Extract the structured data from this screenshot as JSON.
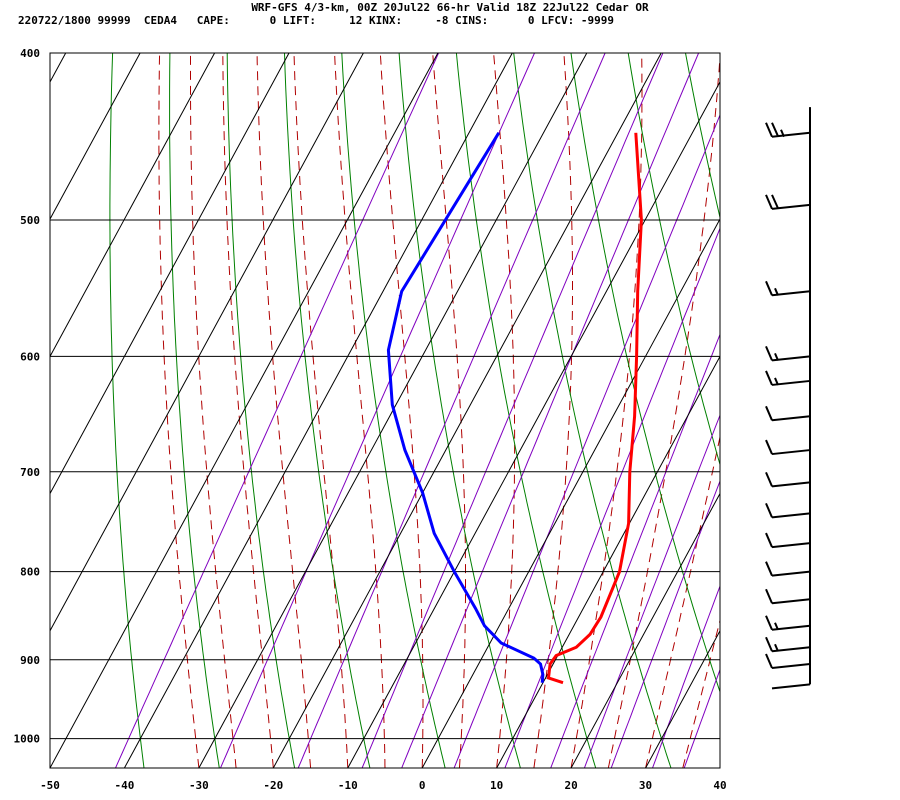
{
  "header": {
    "line1": "WRF-GFS 4/3-km, 00Z 20Jul22 66-hr Valid 18Z 22Jul22 Cedar OR",
    "line2": "220722/1800 99999  CEDA4   CAPE:      0 LIFT:     12 KINX:     -8 CINS:      0 LFCV: -9999"
  },
  "colors": {
    "temperature": "#ff0000",
    "dewpoint": "#0000ff",
    "isotherm_grid": "#000000",
    "dry_adiabat": "#008000",
    "moist_adiabat": "#b00000",
    "mixing_ratio": "#8000c0",
    "wind_barb": "#000000"
  },
  "chart_data": {
    "type": "line",
    "subtype": "skew-T log-p sounding",
    "xlabel": "",
    "ylabel": "",
    "x_ticks": [
      "-50",
      "-40",
      "-30",
      "-20",
      "-10",
      "0",
      "10",
      "20",
      "30",
      "40"
    ],
    "y_ticks": [
      "400",
      "500",
      "600",
      "700",
      "800",
      "900",
      "1000"
    ],
    "xlim": [
      -50,
      40
    ],
    "ylim": [
      1040,
      400
    ],
    "y_scale": "log",
    "grid": true,
    "series": [
      {
        "key": "temperature",
        "points": [
          [
            -17.6,
            445
          ],
          [
            -10.5,
            500
          ],
          [
            -5.8,
            550
          ],
          [
            -1.2,
            600
          ],
          [
            2.9,
            650
          ],
          [
            6.3,
            700
          ],
          [
            9.9,
            750
          ],
          [
            12.2,
            800
          ],
          [
            13.0,
            850
          ],
          [
            12.8,
            870
          ],
          [
            11.9,
            885
          ],
          [
            9.8,
            895
          ],
          [
            9.6,
            905
          ],
          [
            10.4,
            922
          ],
          [
            12.7,
            928
          ]
        ]
      },
      {
        "key": "dewpoint",
        "points": [
          [
            -36.0,
            445
          ],
          [
            -37.5,
            550
          ],
          [
            -35.0,
            595
          ],
          [
            -30.5,
            640
          ],
          [
            -25.5,
            680
          ],
          [
            -20.0,
            720
          ],
          [
            -15.5,
            760
          ],
          [
            -10.0,
            800
          ],
          [
            -4.5,
            840
          ],
          [
            -2.0,
            860
          ],
          [
            1.5,
            880
          ],
          [
            7.0,
            898
          ],
          [
            8.3,
            905
          ],
          [
            9.4,
            918
          ],
          [
            9.9,
            928
          ]
        ]
      }
    ],
    "wind_barbs": [
      {
        "p": 445,
        "speed_kt": 25
      },
      {
        "p": 490,
        "speed_kt": 20
      },
      {
        "p": 550,
        "speed_kt": 15
      },
      {
        "p": 600,
        "speed_kt": 15
      },
      {
        "p": 620,
        "speed_kt": 15
      },
      {
        "p": 650,
        "speed_kt": 10
      },
      {
        "p": 680,
        "speed_kt": 10
      },
      {
        "p": 710,
        "speed_kt": 10
      },
      {
        "p": 740,
        "speed_kt": 10
      },
      {
        "p": 770,
        "speed_kt": 10
      },
      {
        "p": 800,
        "speed_kt": 10
      },
      {
        "p": 830,
        "speed_kt": 10
      },
      {
        "p": 860,
        "speed_kt": 15
      },
      {
        "p": 885,
        "speed_kt": 15
      },
      {
        "p": 905,
        "speed_kt": 10
      },
      {
        "p": 930,
        "speed_kt": 0
      }
    ]
  }
}
